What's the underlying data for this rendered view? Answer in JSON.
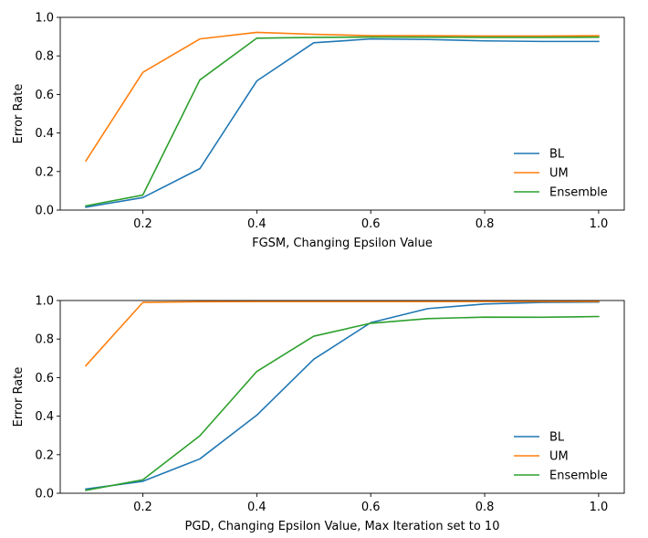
{
  "chart_data": [
    {
      "type": "line",
      "title": "",
      "xlabel": "FGSM, Changing Epsilon Value",
      "ylabel": "Error Rate",
      "xlim": [
        0.055,
        1.045
      ],
      "ylim": [
        0,
        1
      ],
      "x_ticks": [
        "0.2",
        "0.4",
        "0.6",
        "0.8",
        "1.0"
      ],
      "y_ticks": [
        "0.0",
        "0.2",
        "0.4",
        "0.6",
        "0.8",
        "1.0"
      ],
      "grid": false,
      "legend_position": "lower-right",
      "x": [
        0.1,
        0.2,
        0.3,
        0.4,
        0.5,
        0.6,
        0.7,
        0.8,
        0.9,
        1.0
      ],
      "series": [
        {
          "name": "BL",
          "color": "#1f77b4",
          "values": [
            0.015,
            0.065,
            0.215,
            0.67,
            0.868,
            0.888,
            0.885,
            0.878,
            0.875,
            0.875
          ]
        },
        {
          "name": "UM",
          "color": "#ff7f0e",
          "values": [
            0.255,
            0.715,
            0.888,
            0.922,
            0.912,
            0.905,
            0.905,
            0.903,
            0.903,
            0.905
          ]
        },
        {
          "name": "Ensemble",
          "color": "#2ca02c",
          "values": [
            0.022,
            0.078,
            0.675,
            0.892,
            0.896,
            0.898,
            0.897,
            0.896,
            0.896,
            0.897
          ]
        }
      ]
    },
    {
      "type": "line",
      "title": "",
      "xlabel": "PGD, Changing Epsilon Value, Max Iteration set to 10",
      "ylabel": "Error Rate",
      "xlim": [
        0.055,
        1.045
      ],
      "ylim": [
        0,
        1
      ],
      "x_ticks": [
        "0.2",
        "0.4",
        "0.6",
        "0.8",
        "1.0"
      ],
      "y_ticks": [
        "0.0",
        "0.2",
        "0.4",
        "0.6",
        "0.8",
        "1.0"
      ],
      "grid": false,
      "legend_position": "lower-right",
      "x": [
        0.1,
        0.2,
        0.3,
        0.4,
        0.5,
        0.6,
        0.7,
        0.8,
        0.9,
        1.0
      ],
      "series": [
        {
          "name": "BL",
          "color": "#1f77b4",
          "values": [
            0.022,
            0.062,
            0.178,
            0.405,
            0.695,
            0.885,
            0.958,
            0.982,
            0.99,
            0.992
          ]
        },
        {
          "name": "UM",
          "color": "#ff7f0e",
          "values": [
            0.662,
            0.99,
            0.994,
            0.995,
            0.995,
            0.995,
            0.995,
            0.995,
            0.995,
            0.995
          ]
        },
        {
          "name": "Ensemble",
          "color": "#2ca02c",
          "values": [
            0.015,
            0.07,
            0.298,
            0.632,
            0.815,
            0.882,
            0.906,
            0.914,
            0.913,
            0.917
          ]
        }
      ]
    }
  ]
}
